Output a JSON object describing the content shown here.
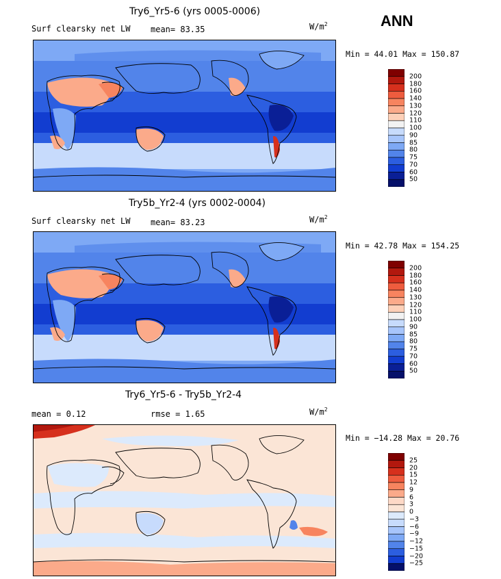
{
  "season": "ANN",
  "units_base": "W/m",
  "units_exp": "2",
  "panels": [
    {
      "title": "Try6_Yr5-6 (yrs 0005-0006)",
      "variable": "Surf clearsky net LW",
      "mean_label": "mean=  83.35",
      "minmax": "Min =  44.01 Max = 150.87",
      "colorbar": [
        "200",
        "180",
        "160",
        "140",
        "130",
        "120",
        "110",
        "100",
        "90",
        "85",
        "80",
        "75",
        "70",
        "60",
        "50"
      ]
    },
    {
      "title": "Try5b_Yr2-4 (yrs 0002-0004)",
      "variable": "Surf clearsky net LW",
      "mean_label": "mean=  83.23",
      "minmax": "Min =  42.78 Max = 154.25",
      "colorbar": [
        "200",
        "180",
        "160",
        "140",
        "130",
        "120",
        "110",
        "100",
        "90",
        "85",
        "80",
        "75",
        "70",
        "60",
        "50"
      ]
    },
    {
      "title": "Try6_Yr5-6 - Try5b_Yr2-4",
      "mean_label": "mean =   0.12",
      "rmse_label": "rmse =   1.65",
      "minmax": "Min = −14.28 Max =  20.76",
      "colorbar": [
        "25",
        "20",
        "15",
        "12",
        "9",
        "6",
        "3",
        "0",
        "−3",
        "−6",
        "−9",
        "−12",
        "−15",
        "−20",
        "−25"
      ]
    }
  ],
  "colors": {
    "abs_scale": [
      "#7f0000",
      "#b2180e",
      "#d6301d",
      "#ee5c3e",
      "#f7845f",
      "#fbaa8a",
      "#fdd0b8",
      "#f2f2f2",
      "#c7dbfc",
      "#a7c5fb",
      "#7ea9f5",
      "#5284ea",
      "#2c5ee0",
      "#123dd0",
      "#0a1f96",
      "#05106a"
    ],
    "diff_scale": [
      "#7f0000",
      "#b2180e",
      "#d6301d",
      "#ee5c3e",
      "#f7845f",
      "#fbaa8a",
      "#fdd9c7",
      "#fbe5d6",
      "#dceafc",
      "#c7dbfc",
      "#a7c5fb",
      "#7ea9f5",
      "#5284ea",
      "#2c5ee0",
      "#123dd0",
      "#05106a"
    ]
  }
}
